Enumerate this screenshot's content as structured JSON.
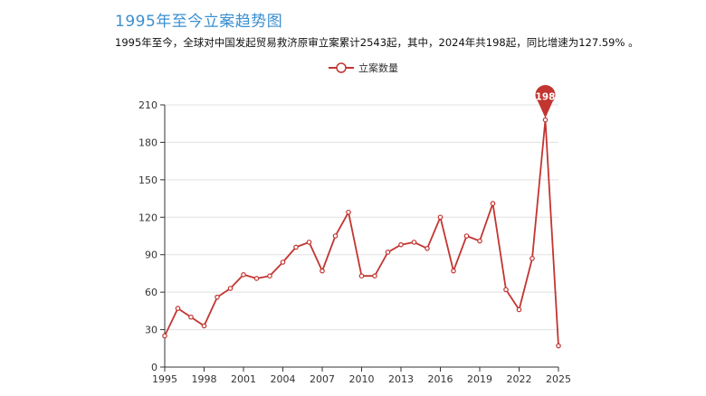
{
  "header": {
    "title": "1995年至今立案趋势图",
    "description": "1995年至今，全球对中国发起贸易救济原审立案累计2543起，其中，2024年共198起，同比增速为127.59% 。"
  },
  "colors": {
    "series": "#c23531",
    "grid": "#e0e0e0",
    "axis": "#333333",
    "title": "#3a8fd0"
  },
  "chart_data": {
    "type": "line",
    "series": [
      {
        "name": "立案数量",
        "x": [
          1995,
          1996,
          1997,
          1998,
          1999,
          2000,
          2001,
          2002,
          2003,
          2004,
          2005,
          2006,
          2007,
          2008,
          2009,
          2010,
          2011,
          2012,
          2013,
          2014,
          2015,
          2016,
          2017,
          2018,
          2019,
          2020,
          2021,
          2022,
          2023,
          2024,
          2025
        ],
        "values": [
          25,
          47,
          40,
          33,
          56,
          63,
          74,
          71,
          73,
          84,
          96,
          100,
          77,
          105,
          124,
          73,
          73,
          92,
          98,
          100,
          95,
          120,
          77,
          105,
          101,
          131,
          62,
          46,
          87,
          198,
          17
        ]
      }
    ],
    "x_ticks": [
      1995,
      1998,
      2001,
      2004,
      2007,
      2010,
      2013,
      2016,
      2019,
      2022,
      2025
    ],
    "y_ticks": [
      0,
      30,
      60,
      90,
      120,
      150,
      180,
      210
    ],
    "xlim": [
      1995,
      2025
    ],
    "ylim": [
      0,
      210
    ],
    "grid": true,
    "legend": "top-center",
    "annotation": {
      "x": 2024,
      "value": "198",
      "style": "pin"
    }
  }
}
